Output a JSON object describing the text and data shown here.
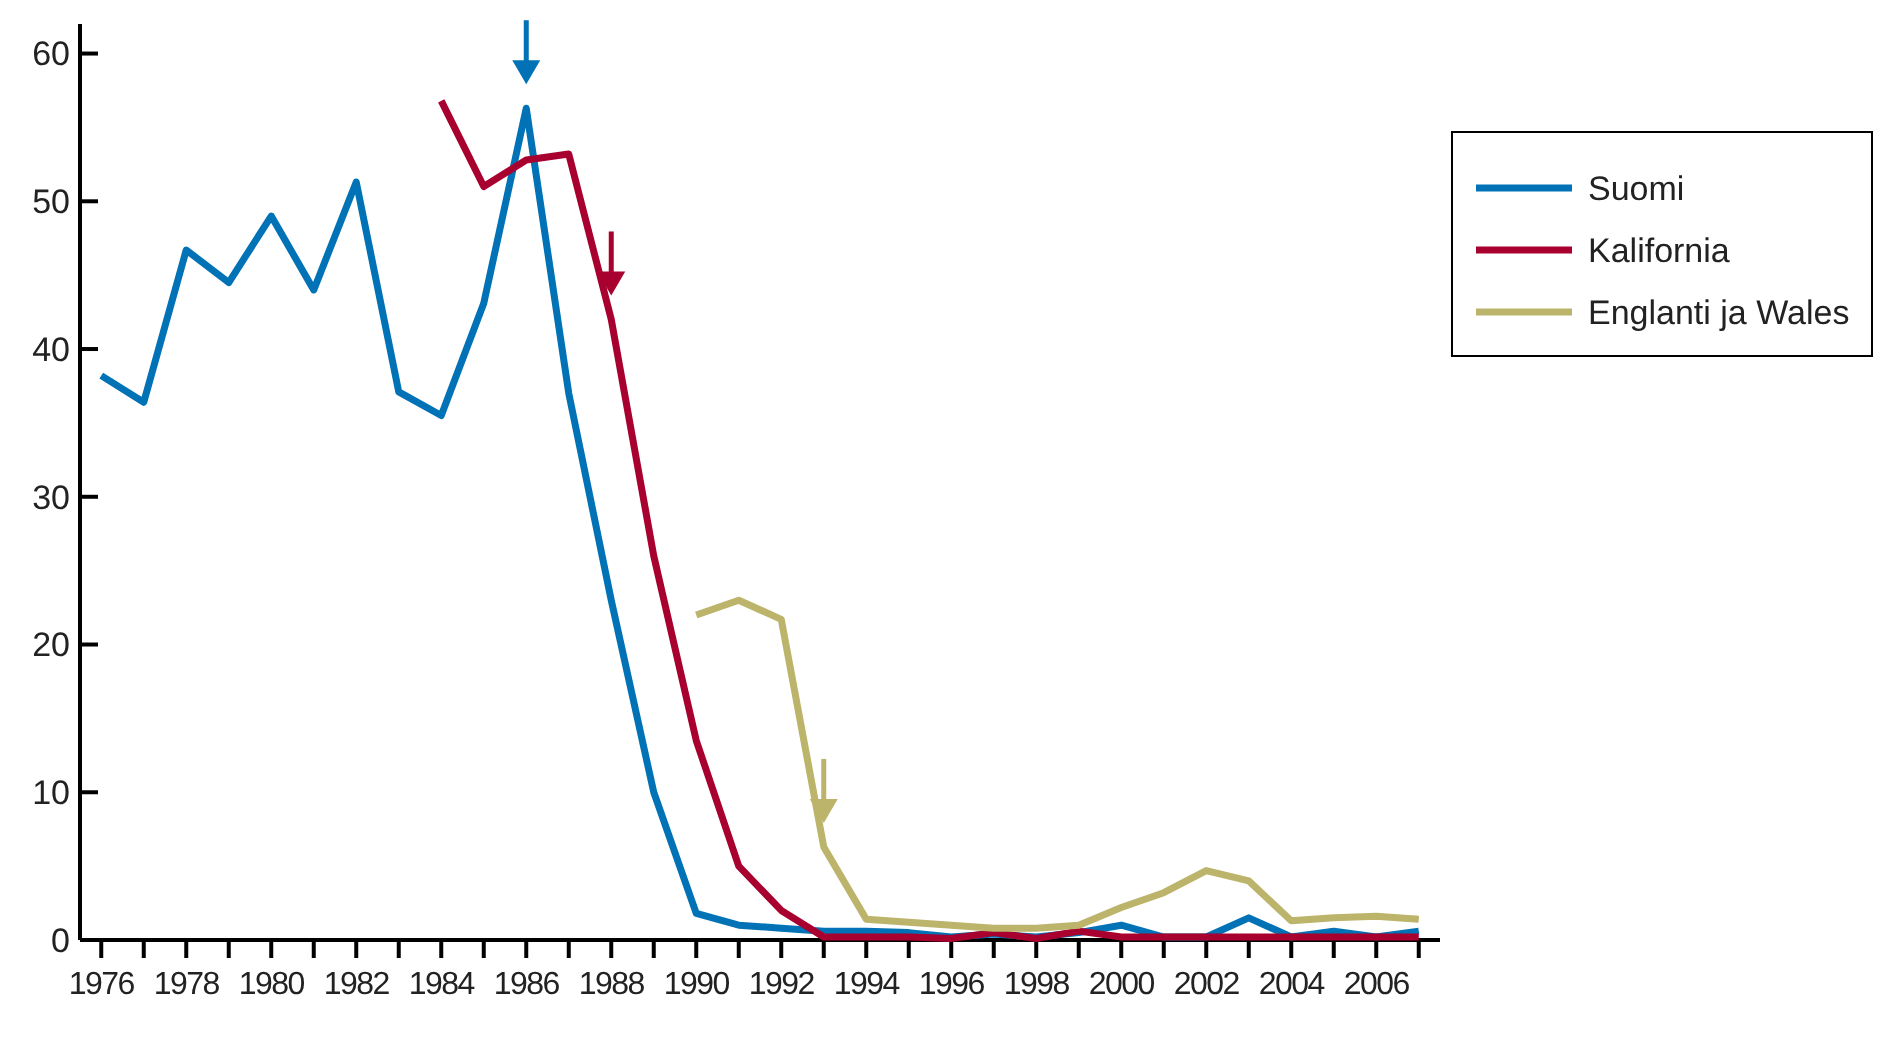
{
  "chart_data": {
    "type": "line",
    "legend": "top right",
    "line_style": "solid",
    "marker": "none",
    "grid": false,
    "xlim": [
      1975.5,
      2007.5
    ],
    "xticks": [
      {
        "value": 1976,
        "label": "1976"
      },
      {
        "value": 1977,
        "label": null
      },
      {
        "value": 1978,
        "label": "1978"
      },
      {
        "value": 1979,
        "label": null
      },
      {
        "value": 1980,
        "label": "1980"
      },
      {
        "value": 1981,
        "label": null
      },
      {
        "value": 1982,
        "label": "1982"
      },
      {
        "value": 1983,
        "label": null
      },
      {
        "value": 1984,
        "label": "1984"
      },
      {
        "value": 1985,
        "label": null
      },
      {
        "value": 1986,
        "label": "1986"
      },
      {
        "value": 1987,
        "label": null
      },
      {
        "value": 1988,
        "label": "1988"
      },
      {
        "value": 1989,
        "label": null
      },
      {
        "value": 1990,
        "label": "1990"
      },
      {
        "value": 1991,
        "label": null
      },
      {
        "value": 1992,
        "label": "1992"
      },
      {
        "value": 1993,
        "label": null
      },
      {
        "value": 1994,
        "label": "1994"
      },
      {
        "value": 1995,
        "label": null
      },
      {
        "value": 1996,
        "label": "1996"
      },
      {
        "value": 1997,
        "label": null
      },
      {
        "value": 1998,
        "label": "1998"
      },
      {
        "value": 1999,
        "label": null
      },
      {
        "value": 2000,
        "label": "2000"
      },
      {
        "value": 2001,
        "label": null
      },
      {
        "value": 2002,
        "label": "2002"
      },
      {
        "value": 2003,
        "label": null
      },
      {
        "value": 2004,
        "label": "2004"
      },
      {
        "value": 2005,
        "label": null
      },
      {
        "value": 2006,
        "label": "2006"
      },
      {
        "value": 2007,
        "label": null
      }
    ],
    "ylim": [
      0,
      62
    ],
    "yticks": [
      0,
      10,
      20,
      30,
      40,
      50,
      60
    ],
    "series": [
      {
        "name": "Suomi",
        "color": "#0072b5",
        "x": [
          1976,
          1977,
          1978,
          1979,
          1980,
          1981,
          1982,
          1983,
          1984,
          1985,
          1986,
          1987,
          1988,
          1989,
          1990,
          1991,
          1992,
          1993,
          1994,
          1995,
          1996,
          1997,
          1998,
          1999,
          2000,
          2001,
          2002,
          2003,
          2004,
          2005,
          2006,
          2007
        ],
        "values": [
          38.2,
          36.4,
          46.7,
          44.5,
          49,
          44,
          51.3,
          37.1,
          35.5,
          43.1,
          56.3,
          37,
          23,
          10,
          1.8,
          1,
          0.8,
          0.6,
          0.6,
          0.5,
          0.2,
          0.4,
          0.2,
          0.5,
          1,
          0.2,
          0.2,
          1.5,
          0.2,
          0.6,
          0.2,
          0.6
        ]
      },
      {
        "name": "Kalifornia",
        "color": "#a8002f",
        "x": [
          1984,
          1985,
          1986,
          1987,
          1988,
          1989,
          1990,
          1991,
          1992,
          1993,
          1994,
          1995,
          1996,
          1997,
          1998,
          1999,
          2000,
          2001,
          2002,
          2003,
          2004,
          2005,
          2006,
          2007
        ],
        "values": [
          56.8,
          51,
          52.8,
          53.2,
          42,
          26,
          13.5,
          5,
          2,
          0.2,
          0.2,
          0.2,
          0.1,
          0.5,
          0.1,
          0.6,
          0.2,
          0.2,
          0.2,
          0.2,
          0.2,
          0.2,
          0.2,
          0.2
        ]
      },
      {
        "name": "Englanti ja Wales",
        "color": "#bcb46a",
        "x": [
          1990,
          1991,
          1992,
          1993,
          1994,
          1995,
          1996,
          1997,
          1998,
          1999,
          2000,
          2001,
          2002,
          2003,
          2004,
          2005,
          2006,
          2007
        ],
        "values": [
          22,
          23,
          21.7,
          6.3,
          1.4,
          1.2,
          1,
          0.8,
          0.8,
          1,
          2.2,
          3.2,
          4.7,
          4,
          1.3,
          1.5,
          1.6,
          1.4
        ]
      }
    ]
  }
}
